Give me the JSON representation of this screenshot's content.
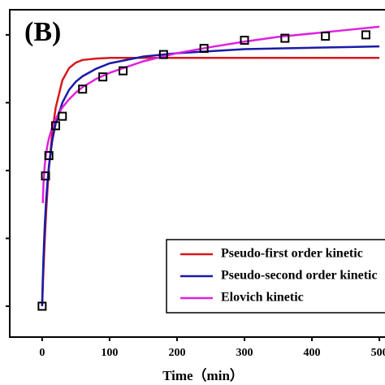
{
  "chart_data": {
    "type": "line",
    "label": "(B)",
    "xlabel": "Time（min）",
    "xlim": [
      -48,
      530
    ],
    "xticks": [
      0,
      100,
      200,
      300,
      400,
      500
    ],
    "ylim": [
      -0.455,
      4.37
    ],
    "yticks": [
      0,
      1,
      2,
      3,
      4
    ],
    "points": {
      "color": "#000000",
      "x": [
        0,
        5,
        10,
        20,
        30,
        60,
        90,
        120,
        180,
        240,
        300,
        360,
        420,
        480
      ],
      "values": [
        0,
        1.92,
        2.22,
        2.66,
        2.8,
        3.2,
        3.38,
        3.47,
        3.71,
        3.8,
        3.92,
        3.95,
        3.98,
        4.0
      ]
    },
    "x": [
      0,
      1,
      2,
      4,
      6,
      8,
      10,
      15,
      20,
      30,
      40,
      50,
      60,
      80,
      100,
      150,
      200,
      250,
      300,
      350,
      400,
      450,
      500
    ],
    "series": [
      {
        "name": "Pseudo-first order kinetic",
        "color": "#d7191c",
        "values": [
          0,
          0.28,
          0.54,
          1.0,
          1.39,
          1.73,
          2.02,
          2.56,
          2.92,
          3.33,
          3.51,
          3.59,
          3.63,
          3.65,
          3.66,
          3.66,
          3.66,
          3.66,
          3.66,
          3.66,
          3.66,
          3.66,
          3.66
        ]
      },
      {
        "name": "Pseudo-second order kinetic",
        "color": "#1a1aa8",
        "values": [
          0,
          0.39,
          0.71,
          1.21,
          1.57,
          1.84,
          2.06,
          2.44,
          2.69,
          3.0,
          3.19,
          3.31,
          3.39,
          3.5,
          3.58,
          3.68,
          3.73,
          3.76,
          3.79,
          3.8,
          3.81,
          3.82,
          3.83
        ]
      },
      {
        "name": "Elovich kinetic",
        "color": "#e020e0",
        "values": [
          null,
          1.52,
          1.8,
          2.09,
          2.26,
          2.38,
          2.47,
          2.64,
          2.76,
          2.93,
          3.05,
          3.15,
          3.23,
          3.35,
          3.44,
          3.61,
          3.73,
          3.82,
          3.9,
          3.97,
          4.02,
          4.07,
          4.12
        ]
      }
    ]
  }
}
